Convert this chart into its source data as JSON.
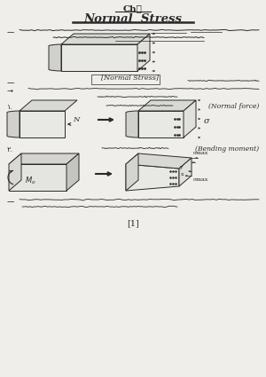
{
  "bg_color": "#f0eeea",
  "line_color": "#2a2a2a",
  "title_ch": "Ch⒣",
  "title_main": "Normal  Stress",
  "page_num": "[1]",
  "figsize": [
    3.0,
    4.25
  ],
  "dpi": 100
}
